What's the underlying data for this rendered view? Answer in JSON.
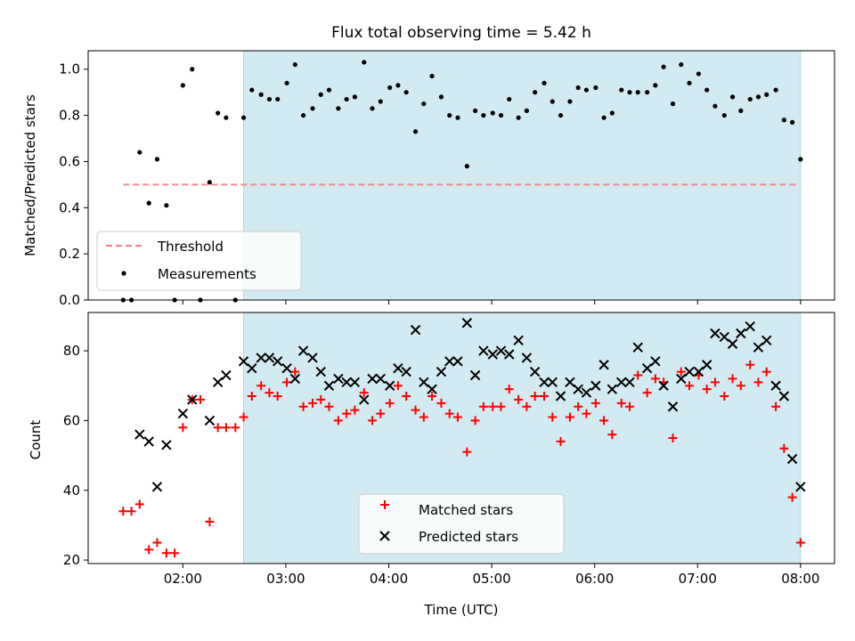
{
  "title": "Flux total observing time = 5.42 h",
  "colors": {
    "shade": "#add8e6",
    "threshold": "#f08080",
    "measurement": "#000000",
    "matched": "#ff0000",
    "predicted": "#000000"
  },
  "chart_data": [
    {
      "type": "scatter",
      "panel": "top",
      "ylabel": "Matched/Predicted stars",
      "xlabel": "",
      "ylim": [
        0,
        1.08
      ],
      "yticks": [
        "0.0",
        "0.2",
        "0.4",
        "0.6",
        "0.8",
        "1.0"
      ],
      "x_unit": "hours UTC",
      "xlim": [
        1.08,
        8.33
      ],
      "shaded_region": [
        2.59,
        8.0
      ],
      "threshold": {
        "y": 0.5,
        "x": [
          1.42,
          7.98
        ],
        "label": "Threshold",
        "style": "dashed"
      },
      "legend": {
        "position": "lower-left",
        "entries": [
          "Threshold",
          "Measurements"
        ]
      },
      "series": [
        {
          "name": "Measurements",
          "marker": "dot",
          "points": [
            [
              1.42,
              0.0
            ],
            [
              1.5,
              0.0
            ],
            [
              1.58,
              0.64
            ],
            [
              1.67,
              0.42
            ],
            [
              1.75,
              0.61
            ],
            [
              1.84,
              0.41
            ],
            [
              1.92,
              0.0
            ],
            [
              2.0,
              0.93
            ],
            [
              2.09,
              1.0
            ],
            [
              2.17,
              0.0
            ],
            [
              2.26,
              0.51
            ],
            [
              2.34,
              0.81
            ],
            [
              2.42,
              0.79
            ],
            [
              2.51,
              0.0
            ],
            [
              2.59,
              0.79
            ],
            [
              2.67,
              0.91
            ],
            [
              2.76,
              0.89
            ],
            [
              2.84,
              0.87
            ],
            [
              2.92,
              0.87
            ],
            [
              3.01,
              0.94
            ],
            [
              3.09,
              1.02
            ],
            [
              3.17,
              0.8
            ],
            [
              3.26,
              0.83
            ],
            [
              3.34,
              0.89
            ],
            [
              3.42,
              0.91
            ],
            [
              3.51,
              0.83
            ],
            [
              3.59,
              0.87
            ],
            [
              3.67,
              0.88
            ],
            [
              3.76,
              1.03
            ],
            [
              3.84,
              0.83
            ],
            [
              3.92,
              0.86
            ],
            [
              4.01,
              0.92
            ],
            [
              4.09,
              0.93
            ],
            [
              4.17,
              0.9
            ],
            [
              4.26,
              0.73
            ],
            [
              4.34,
              0.85
            ],
            [
              4.42,
              0.97
            ],
            [
              4.51,
              0.88
            ],
            [
              4.59,
              0.8
            ],
            [
              4.67,
              0.79
            ],
            [
              4.76,
              0.58
            ],
            [
              4.84,
              0.82
            ],
            [
              4.92,
              0.8
            ],
            [
              5.01,
              0.81
            ],
            [
              5.09,
              0.8
            ],
            [
              5.17,
              0.87
            ],
            [
              5.26,
              0.79
            ],
            [
              5.34,
              0.82
            ],
            [
              5.42,
              0.9
            ],
            [
              5.51,
              0.94
            ],
            [
              5.59,
              0.86
            ],
            [
              5.67,
              0.8
            ],
            [
              5.76,
              0.86
            ],
            [
              5.84,
              0.92
            ],
            [
              5.92,
              0.91
            ],
            [
              6.01,
              0.92
            ],
            [
              6.09,
              0.79
            ],
            [
              6.17,
              0.81
            ],
            [
              6.26,
              0.91
            ],
            [
              6.34,
              0.9
            ],
            [
              6.42,
              0.9
            ],
            [
              6.51,
              0.9
            ],
            [
              6.59,
              0.93
            ],
            [
              6.67,
              1.01
            ],
            [
              6.76,
              0.85
            ],
            [
              6.84,
              1.02
            ],
            [
              6.92,
              0.94
            ],
            [
              7.01,
              0.98
            ],
            [
              7.09,
              0.91
            ],
            [
              7.17,
              0.84
            ],
            [
              7.26,
              0.8
            ],
            [
              7.34,
              0.88
            ],
            [
              7.42,
              0.82
            ],
            [
              7.51,
              0.87
            ],
            [
              7.59,
              0.88
            ],
            [
              7.67,
              0.89
            ],
            [
              7.76,
              0.91
            ],
            [
              7.84,
              0.78
            ],
            [
              7.92,
              0.77
            ],
            [
              8.0,
              0.61
            ]
          ]
        }
      ]
    },
    {
      "type": "scatter",
      "panel": "bottom",
      "ylabel": "Count",
      "xlabel": "Time (UTC)",
      "ylim": [
        19,
        91
      ],
      "yticks": [
        "20",
        "40",
        "60",
        "80"
      ],
      "xticks": [
        "02:00",
        "03:00",
        "04:00",
        "05:00",
        "06:00",
        "07:00",
        "08:00"
      ],
      "x_unit": "hours UTC",
      "xlim": [
        1.08,
        8.33
      ],
      "shaded_region": [
        2.59,
        8.0
      ],
      "legend": {
        "position": "lower-center",
        "entries": [
          "Matched stars",
          "Predicted stars"
        ]
      },
      "series": [
        {
          "name": "Matched stars",
          "marker": "plus",
          "points": [
            [
              1.42,
              34
            ],
            [
              1.5,
              34
            ],
            [
              1.58,
              36
            ],
            [
              1.67,
              23
            ],
            [
              1.75,
              25
            ],
            [
              1.84,
              22
            ],
            [
              1.92,
              22
            ],
            [
              2.0,
              58
            ],
            [
              2.09,
              66
            ],
            [
              2.17,
              66
            ],
            [
              2.26,
              31
            ],
            [
              2.34,
              58
            ],
            [
              2.42,
              58
            ],
            [
              2.51,
              58
            ],
            [
              2.59,
              61
            ],
            [
              2.67,
              67
            ],
            [
              2.76,
              70
            ],
            [
              2.84,
              68
            ],
            [
              2.92,
              67
            ],
            [
              3.01,
              71
            ],
            [
              3.09,
              74
            ],
            [
              3.17,
              64
            ],
            [
              3.26,
              65
            ],
            [
              3.34,
              66
            ],
            [
              3.42,
              64
            ],
            [
              3.51,
              60
            ],
            [
              3.59,
              62
            ],
            [
              3.67,
              63
            ],
            [
              3.76,
              68
            ],
            [
              3.84,
              60
            ],
            [
              3.92,
              62
            ],
            [
              4.01,
              65
            ],
            [
              4.09,
              70
            ],
            [
              4.17,
              67
            ],
            [
              4.26,
              63
            ],
            [
              4.34,
              61
            ],
            [
              4.42,
              67
            ],
            [
              4.51,
              65
            ],
            [
              4.59,
              62
            ],
            [
              4.67,
              61
            ],
            [
              4.76,
              51
            ],
            [
              4.84,
              60
            ],
            [
              4.92,
              64
            ],
            [
              5.01,
              64
            ],
            [
              5.09,
              64
            ],
            [
              5.17,
              69
            ],
            [
              5.26,
              66
            ],
            [
              5.34,
              64
            ],
            [
              5.42,
              67
            ],
            [
              5.51,
              67
            ],
            [
              5.59,
              61
            ],
            [
              5.67,
              54
            ],
            [
              5.76,
              61
            ],
            [
              5.84,
              64
            ],
            [
              5.92,
              62
            ],
            [
              6.01,
              65
            ],
            [
              6.09,
              60
            ],
            [
              6.17,
              56
            ],
            [
              6.26,
              65
            ],
            [
              6.34,
              64
            ],
            [
              6.42,
              73
            ],
            [
              6.51,
              68
            ],
            [
              6.59,
              72
            ],
            [
              6.67,
              71
            ],
            [
              6.76,
              55
            ],
            [
              6.84,
              74
            ],
            [
              6.92,
              70
            ],
            [
              7.01,
              73
            ],
            [
              7.09,
              69
            ],
            [
              7.17,
              71
            ],
            [
              7.26,
              67
            ],
            [
              7.34,
              72
            ],
            [
              7.42,
              70
            ],
            [
              7.51,
              76
            ],
            [
              7.59,
              71
            ],
            [
              7.67,
              74
            ],
            [
              7.76,
              64
            ],
            [
              7.84,
              52
            ],
            [
              7.92,
              38
            ],
            [
              8.0,
              25
            ]
          ]
        },
        {
          "name": "Predicted stars",
          "marker": "x",
          "points": [
            [
              1.58,
              56
            ],
            [
              1.67,
              54
            ],
            [
              1.75,
              41
            ],
            [
              1.84,
              53
            ],
            [
              2.0,
              62
            ],
            [
              2.09,
              66
            ],
            [
              2.26,
              60
            ],
            [
              2.34,
              71
            ],
            [
              2.42,
              73
            ],
            [
              2.59,
              77
            ],
            [
              2.67,
              75
            ],
            [
              2.76,
              78
            ],
            [
              2.84,
              78
            ],
            [
              2.92,
              77
            ],
            [
              3.01,
              75
            ],
            [
              3.09,
              72
            ],
            [
              3.17,
              80
            ],
            [
              3.26,
              78
            ],
            [
              3.34,
              74
            ],
            [
              3.42,
              70
            ],
            [
              3.51,
              72
            ],
            [
              3.59,
              71
            ],
            [
              3.67,
              71
            ],
            [
              3.76,
              66
            ],
            [
              3.84,
              72
            ],
            [
              3.92,
              72
            ],
            [
              4.01,
              70
            ],
            [
              4.09,
              75
            ],
            [
              4.17,
              74
            ],
            [
              4.26,
              86
            ],
            [
              4.34,
              71
            ],
            [
              4.42,
              69
            ],
            [
              4.51,
              74
            ],
            [
              4.59,
              77
            ],
            [
              4.67,
              77
            ],
            [
              4.76,
              88
            ],
            [
              4.84,
              73
            ],
            [
              4.92,
              80
            ],
            [
              5.01,
              79
            ],
            [
              5.09,
              80
            ],
            [
              5.17,
              79
            ],
            [
              5.26,
              83
            ],
            [
              5.34,
              78
            ],
            [
              5.42,
              74
            ],
            [
              5.51,
              71
            ],
            [
              5.59,
              71
            ],
            [
              5.67,
              67
            ],
            [
              5.76,
              71
            ],
            [
              5.84,
              69
            ],
            [
              5.92,
              68
            ],
            [
              6.01,
              70
            ],
            [
              6.09,
              76
            ],
            [
              6.17,
              69
            ],
            [
              6.26,
              71
            ],
            [
              6.34,
              71
            ],
            [
              6.42,
              81
            ],
            [
              6.51,
              75
            ],
            [
              6.59,
              77
            ],
            [
              6.67,
              70
            ],
            [
              6.76,
              64
            ],
            [
              6.84,
              72
            ],
            [
              6.92,
              74
            ],
            [
              7.01,
              74
            ],
            [
              7.09,
              76
            ],
            [
              7.17,
              85
            ],
            [
              7.26,
              84
            ],
            [
              7.34,
              82
            ],
            [
              7.42,
              85
            ],
            [
              7.51,
              87
            ],
            [
              7.59,
              81
            ],
            [
              7.67,
              83
            ],
            [
              7.76,
              70
            ],
            [
              7.84,
              67
            ],
            [
              7.92,
              49
            ],
            [
              8.0,
              41
            ]
          ]
        }
      ]
    }
  ]
}
